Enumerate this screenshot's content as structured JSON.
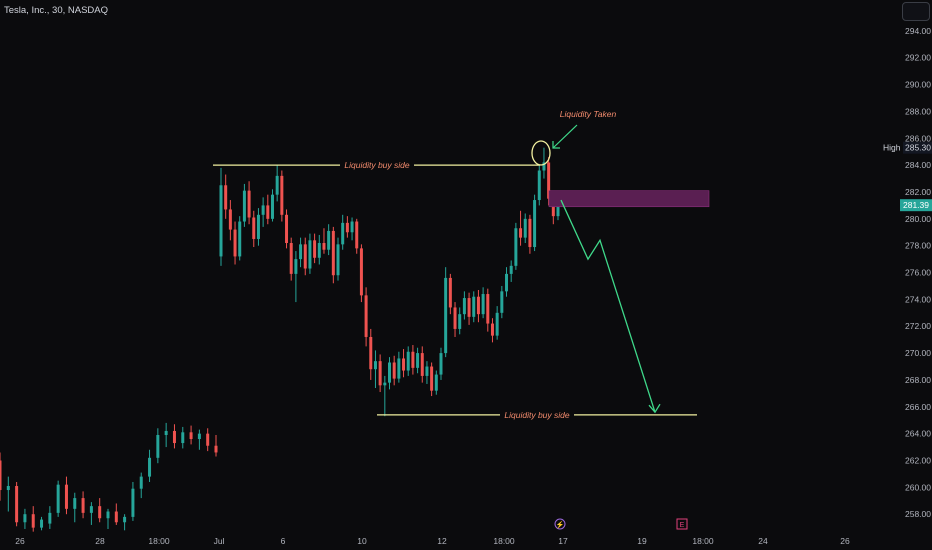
{
  "header": {
    "title": "Tesla, Inc., 30, NASDAQ"
  },
  "toolbar": {
    "menu_icon": "menu-box-icon"
  },
  "chart_data": {
    "type": "candlestick",
    "symbol": "Tesla, Inc., 30, NASDAQ",
    "ylim": [
      256.6,
      296.3
    ],
    "y_ticks": [
      294,
      292,
      290,
      288,
      286,
      284,
      282,
      280,
      278,
      276,
      274,
      272,
      270,
      268,
      266,
      264,
      262,
      260,
      258
    ],
    "x_ticks": [
      "26",
      "28",
      "18:00",
      "Jul",
      "6",
      "10",
      "12",
      "18:00",
      "17",
      "19",
      "18:00",
      "24",
      "26"
    ],
    "colors": {
      "up": "#26a69a",
      "down": "#ef5350",
      "liquidity_line": "#f2f0a0",
      "arrow": "#3fd98a",
      "zone": "#5a1f52",
      "annotation": "#f28b6d"
    },
    "price_labels": {
      "high": {
        "label": "High",
        "value": "285.30"
      },
      "last": {
        "value": "281.39",
        "color": "#26a69a"
      }
    },
    "series": [
      {
        "values": [
          [
            262.0,
            262.6,
            259.0,
            259.8
          ],
          [
            259.8,
            260.8,
            258.2,
            260.1
          ],
          [
            260.1,
            260.4,
            257.1,
            257.4
          ],
          [
            257.4,
            258.4,
            256.9,
            258.0
          ],
          [
            258.0,
            258.6,
            256.7,
            257.0
          ],
          [
            257.0,
            257.8,
            256.8,
            257.6
          ],
          [
            257.3,
            258.6,
            256.9,
            258.1
          ],
          [
            258.1,
            260.5,
            257.8,
            260.2
          ],
          [
            260.2,
            260.8,
            258.0,
            258.4
          ],
          [
            258.4,
            259.6,
            257.4,
            259.2
          ],
          [
            259.2,
            259.7,
            257.7,
            258.1
          ],
          [
            258.1,
            258.9,
            257.2,
            258.6
          ],
          [
            258.6,
            259.2,
            257.4,
            257.7
          ],
          [
            257.7,
            258.4,
            256.9,
            258.2
          ],
          [
            258.2,
            258.8,
            257.2,
            257.4
          ],
          [
            257.4,
            258.0,
            256.8,
            257.8
          ],
          [
            257.8,
            260.4,
            257.5,
            259.9
          ],
          [
            259.9,
            261.1,
            259.2,
            260.8
          ],
          [
            260.8,
            262.8,
            260.4,
            262.2
          ],
          [
            262.2,
            264.4,
            261.8,
            263.9
          ],
          [
            263.9,
            264.8,
            263.0,
            264.2
          ],
          [
            264.2,
            264.7,
            262.9,
            263.3
          ],
          [
            263.3,
            264.5,
            262.9,
            264.1
          ],
          [
            264.1,
            264.6,
            263.2,
            263.6
          ],
          [
            263.6,
            264.3,
            262.8,
            264.0
          ],
          [
            264.0,
            264.4,
            262.7,
            263.1
          ],
          [
            263.1,
            263.9,
            262.3,
            262.6
          ]
        ],
        "x_range": [
          0,
          216
        ]
      },
      {
        "values": [
          [
            277.2,
            283.8,
            276.5,
            282.5
          ],
          [
            282.5,
            283.3,
            280.0,
            280.7
          ],
          [
            280.7,
            281.4,
            278.4,
            279.2
          ],
          [
            279.2,
            279.8,
            276.6,
            277.2
          ],
          [
            277.2,
            280.2,
            276.9,
            279.8
          ],
          [
            279.8,
            282.6,
            279.4,
            282.1
          ],
          [
            282.1,
            282.8,
            279.6,
            280.1
          ],
          [
            280.1,
            280.6,
            277.9,
            278.5
          ],
          [
            278.5,
            280.8,
            278.0,
            280.3
          ],
          [
            280.3,
            281.6,
            279.4,
            281.0
          ],
          [
            281.0,
            281.8,
            279.6,
            280.0
          ],
          [
            280.0,
            282.2,
            279.8,
            281.8
          ],
          [
            281.8,
            284.0,
            281.3,
            283.2
          ],
          [
            283.2,
            283.6,
            279.8,
            280.3
          ],
          [
            280.3,
            280.7,
            277.8,
            278.2
          ],
          [
            278.2,
            278.6,
            275.4,
            275.9
          ],
          [
            275.9,
            277.6,
            273.8,
            277.0
          ],
          [
            277.0,
            278.6,
            276.4,
            278.1
          ],
          [
            278.1,
            278.6,
            275.8,
            276.3
          ],
          [
            276.3,
            278.9,
            275.9,
            278.4
          ],
          [
            278.4,
            278.9,
            276.7,
            277.1
          ],
          [
            277.1,
            278.8,
            276.6,
            278.2
          ],
          [
            278.2,
            279.3,
            277.4,
            277.7
          ],
          [
            277.7,
            279.6,
            277.3,
            279.1
          ],
          [
            279.1,
            279.4,
            275.2,
            275.8
          ],
          [
            275.8,
            278.6,
            275.4,
            278.1
          ],
          [
            278.1,
            280.3,
            277.7,
            279.7
          ],
          [
            279.7,
            280.2,
            278.6,
            279.0
          ],
          [
            279.0,
            280.1,
            278.4,
            279.8
          ],
          [
            279.8,
            280.0,
            277.4,
            277.8
          ],
          [
            277.8,
            278.1,
            273.8,
            274.3
          ],
          [
            274.3,
            274.9,
            270.5,
            271.2
          ],
          [
            271.2,
            271.8,
            268.0,
            268.8
          ],
          [
            268.8,
            270.2,
            267.4,
            269.4
          ],
          [
            269.4,
            269.9,
            267.1,
            267.6
          ],
          [
            267.6,
            268.3,
            265.3,
            267.8
          ],
          [
            267.8,
            269.7,
            267.3,
            269.3
          ],
          [
            269.3,
            269.8,
            267.6,
            268.1
          ],
          [
            268.1,
            270.1,
            267.8,
            269.6
          ],
          [
            269.6,
            270.3,
            268.2,
            268.7
          ],
          [
            268.7,
            270.5,
            268.3,
            270.1
          ],
          [
            270.1,
            270.6,
            268.4,
            268.9
          ],
          [
            268.9,
            270.4,
            268.5,
            270.0
          ],
          [
            270.0,
            270.5,
            267.8,
            268.3
          ],
          [
            268.3,
            269.4,
            267.7,
            269.0
          ],
          [
            269.0,
            269.3,
            266.8,
            267.2
          ],
          [
            267.2,
            268.7,
            266.9,
            268.4
          ],
          [
            268.4,
            270.4,
            268.0,
            270.0
          ],
          [
            270.0,
            276.4,
            269.7,
            275.6
          ],
          [
            275.6,
            275.9,
            272.9,
            273.4
          ],
          [
            273.4,
            273.8,
            271.2,
            271.8
          ],
          [
            271.8,
            273.4,
            271.4,
            272.9
          ],
          [
            272.9,
            274.6,
            272.5,
            274.1
          ],
          [
            274.1,
            274.5,
            272.1,
            272.7
          ],
          [
            272.7,
            274.6,
            272.3,
            274.2
          ],
          [
            274.2,
            274.7,
            272.3,
            272.9
          ],
          [
            272.9,
            274.9,
            272.6,
            274.4
          ],
          [
            274.4,
            274.8,
            271.6,
            272.2
          ],
          [
            272.2,
            272.6,
            270.8,
            271.3
          ],
          [
            271.3,
            273.5,
            271.0,
            273.0
          ],
          [
            273.0,
            275.0,
            272.6,
            274.6
          ],
          [
            274.6,
            276.4,
            274.2,
            275.9
          ],
          [
            275.9,
            276.9,
            275.3,
            276.5
          ],
          [
            276.5,
            279.7,
            276.2,
            279.3
          ],
          [
            279.3,
            280.6,
            278.0,
            278.6
          ],
          [
            278.6,
            280.4,
            278.2,
            280.0
          ],
          [
            280.0,
            280.3,
            277.4,
            277.9
          ],
          [
            277.9,
            281.8,
            277.6,
            281.4
          ],
          [
            281.4,
            284.0,
            281.0,
            283.6
          ],
          [
            283.6,
            285.3,
            283.0,
            284.2
          ],
          [
            284.2,
            284.6,
            281.0,
            281.5
          ],
          [
            281.5,
            282.0,
            279.6,
            280.2
          ],
          [
            280.2,
            281.6,
            279.9,
            281.4
          ]
        ],
        "x_range": [
          221,
          558
        ]
      }
    ],
    "annotations": {
      "liquidity_top": {
        "text": "Liquidity buy side",
        "level": 284.0
      },
      "liquidity_bottom": {
        "text": "Liquidity buy side",
        "level": 265.4
      },
      "taken": {
        "text": "Liquidity Taken"
      },
      "zone": {
        "from": 280.9,
        "to": 282.1
      },
      "projection": [
        281.4,
        277.0,
        278.4,
        265.6
      ]
    },
    "event_markers": [
      "⚡",
      "E"
    ]
  }
}
